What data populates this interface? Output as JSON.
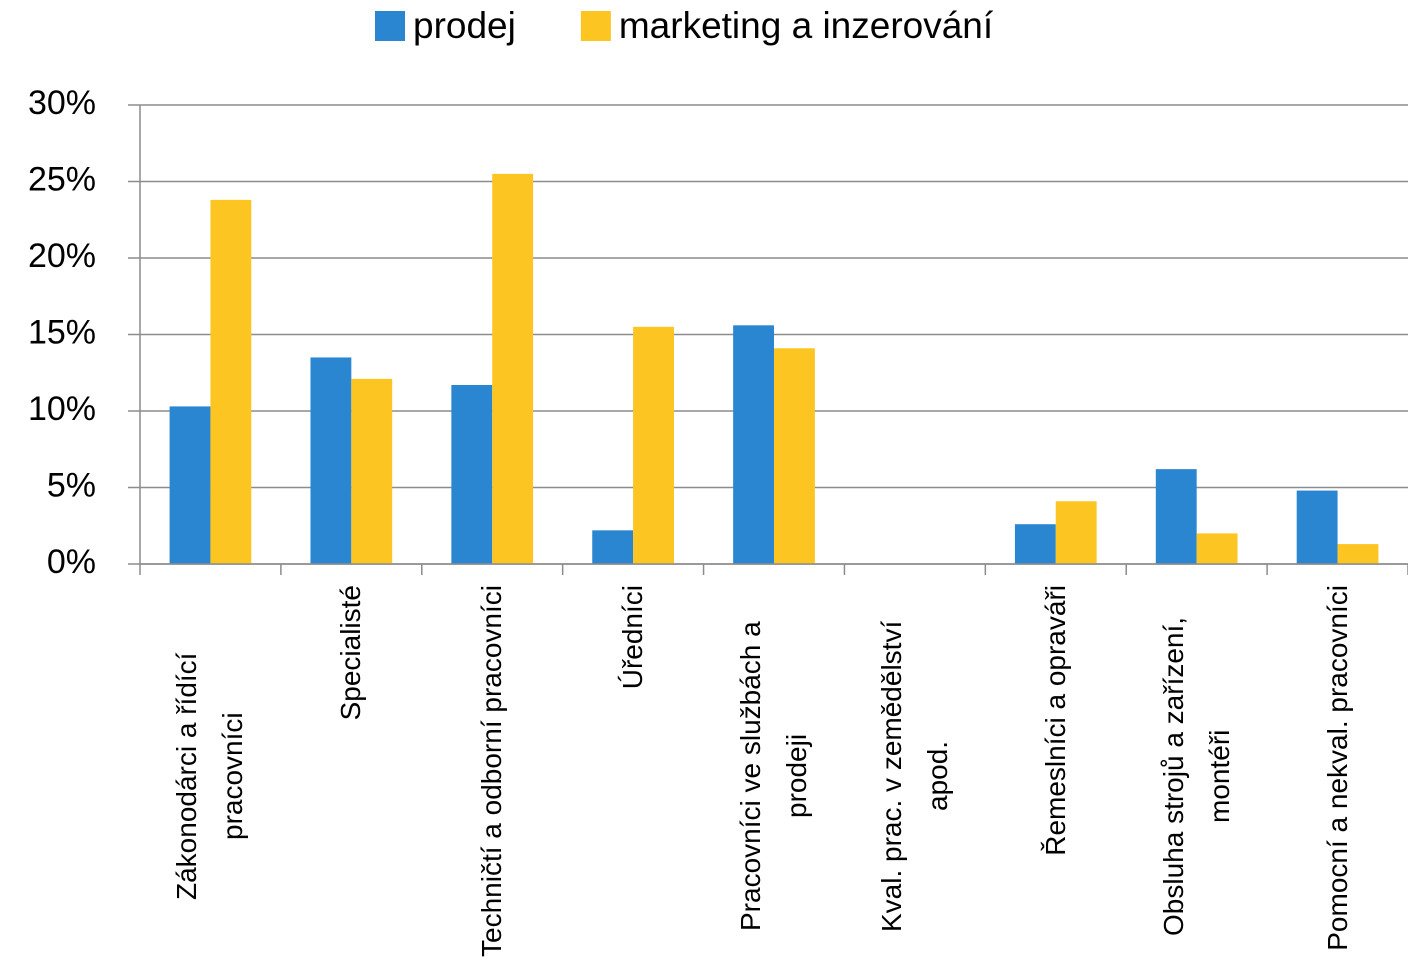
{
  "chart_data": {
    "type": "bar",
    "categories": [
      "Zákonodárci a řídící pracovníci",
      "Specialisté",
      "Techničtí a odborní pracovníci",
      "Úředníci",
      "Pracovníci ve službách a prodeji",
      "Kval. prac. v zemědělství apod.",
      "Řemeslníci a opraváři",
      "Obsluha strojů a zařízení, montéři",
      "Pomocní a nekval. pracovníci"
    ],
    "series": [
      {
        "name": "prodej",
        "color": "#2a86d1",
        "values": [
          10.3,
          13.5,
          11.7,
          2.2,
          15.6,
          0,
          2.6,
          6.2,
          4.8
        ]
      },
      {
        "name": "marketing a inzerování",
        "color": "#fdc521",
        "values": [
          23.8,
          12.1,
          25.5,
          15.5,
          14.1,
          0,
          4.1,
          2.0,
          1.3
        ]
      }
    ],
    "ylim": [
      0,
      30
    ],
    "yticks": [
      {
        "value": 0,
        "label": "0%"
      },
      {
        "value": 5,
        "label": "5%"
      },
      {
        "value": 10,
        "label": "10%"
      },
      {
        "value": 15,
        "label": "15%"
      },
      {
        "value": 20,
        "label": "20%"
      },
      {
        "value": 25,
        "label": "25%"
      },
      {
        "value": 30,
        "label": "30%"
      }
    ],
    "grid": true,
    "legend": "top"
  }
}
